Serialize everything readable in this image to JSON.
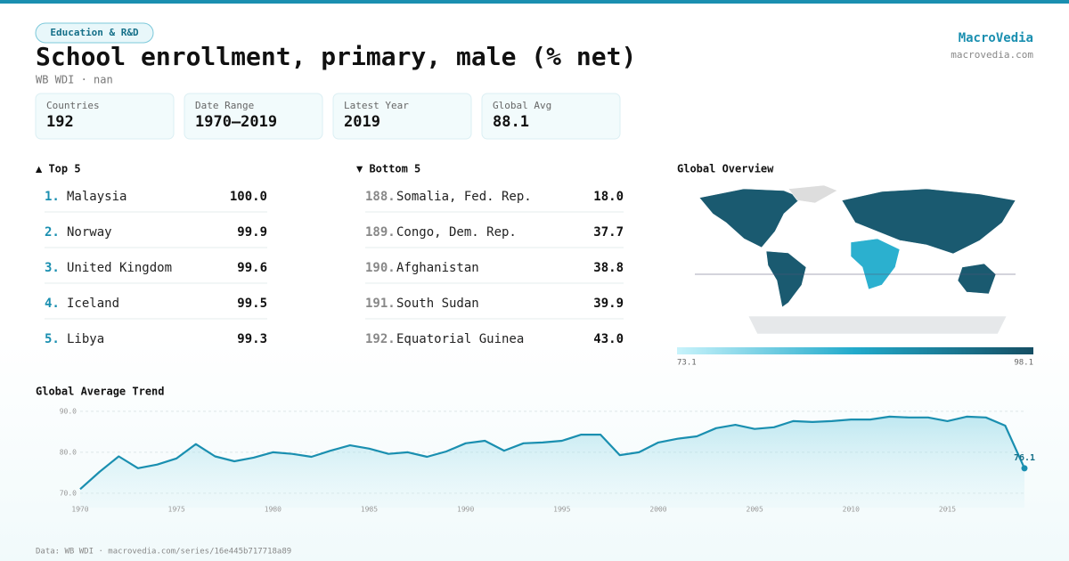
{
  "header": {
    "tag": "Education & R&D",
    "title": "School enrollment, primary, male (% net)",
    "subtitle": "WB WDI · nan",
    "brand": "MacroVedia",
    "site": "macrovedia.com"
  },
  "stats": [
    {
      "label": "Countries",
      "value": 192
    },
    {
      "label": "Date Range",
      "value": "1970–2019"
    },
    {
      "label": "Latest Year",
      "value": 2019
    },
    {
      "label": "Global Avg",
      "value": 88.1
    }
  ],
  "top": {
    "title": "▲ Top 5",
    "rows": [
      {
        "rank": "1.",
        "name": "Malaysia",
        "value": "100.0"
      },
      {
        "rank": "2.",
        "name": "Norway",
        "value": "99.9"
      },
      {
        "rank": "3.",
        "name": "United Kingdom",
        "value": "99.6"
      },
      {
        "rank": "4.",
        "name": "Iceland",
        "value": "99.5"
      },
      {
        "rank": "5.",
        "name": "Libya",
        "value": "99.3"
      }
    ]
  },
  "bottom": {
    "title": "▼ Bottom 5",
    "rows": [
      {
        "rank": "188.",
        "name": "Somalia, Fed. Rep.",
        "value": "18.0"
      },
      {
        "rank": "189.",
        "name": "Congo, Dem. Rep.",
        "value": "37.7"
      },
      {
        "rank": "190.",
        "name": "Afghanistan",
        "value": "38.8"
      },
      {
        "rank": "191.",
        "name": "South Sudan",
        "value": "39.9"
      },
      {
        "rank": "192.",
        "name": "Equatorial Guinea",
        "value": "43.0"
      }
    ]
  },
  "map": {
    "title": "Global Overview",
    "scale_min": 73.1,
    "scale_max": 98.1
  },
  "chart_data": {
    "type": "line",
    "title": "Global Average Trend",
    "color": "#1a8fb0",
    "x": [
      1970,
      1971,
      1972,
      1973,
      1974,
      1975,
      1976,
      1977,
      1978,
      1979,
      1980,
      1981,
      1982,
      1983,
      1984,
      1985,
      1986,
      1987,
      1988,
      1989,
      1990,
      1991,
      1992,
      1993,
      1994,
      1995,
      1996,
      1997,
      1998,
      1999,
      2000,
      2001,
      2002,
      2003,
      2004,
      2005,
      2006,
      2007,
      2008,
      2009,
      2010,
      2011,
      2012,
      2013,
      2014,
      2015,
      2016,
      2017,
      2018,
      2019
    ],
    "values": [
      71.0,
      75.2,
      79.0,
      76.1,
      77.0,
      78.5,
      82.0,
      79.0,
      77.8,
      78.7,
      80.0,
      79.6,
      78.9,
      80.4,
      81.7,
      80.9,
      79.6,
      80.0,
      78.9,
      80.2,
      82.2,
      82.8,
      80.4,
      82.2,
      82.4,
      82.8,
      84.3,
      84.3,
      79.3,
      80.0,
      82.4,
      83.3,
      83.9,
      85.9,
      86.7,
      85.7,
      86.1,
      87.6,
      87.4,
      87.6,
      88.0,
      88.0,
      88.7,
      88.5,
      88.5,
      87.6,
      88.7,
      88.5,
      86.5,
      76.1
    ],
    "xlim": [
      1970,
      2019
    ],
    "xticks": [
      1970,
      1975,
      1980,
      1985,
      1990,
      1995,
      2000,
      2005,
      2010,
      2015
    ],
    "ylim": [
      66.5,
      91.5
    ],
    "yticks": [
      {
        "value": 70,
        "label": "70.0"
      },
      {
        "value": 80,
        "label": "80.0"
      },
      {
        "value": 90,
        "label": "90.0"
      }
    ],
    "grid": true
  },
  "footer": "Data: WB WDI · macrovedia.com/series/16e445b717718a89"
}
